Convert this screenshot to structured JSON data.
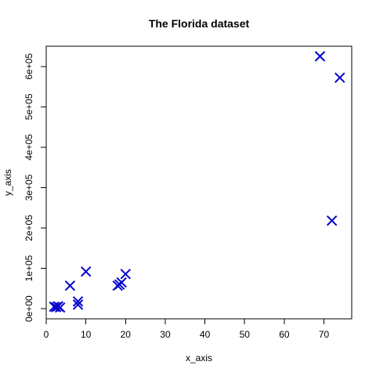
{
  "chart_data": {
    "type": "scatter",
    "title": "The Florida dataset",
    "xlabel": "x_axis",
    "ylabel": "y_axis",
    "xlim": [
      0,
      77
    ],
    "ylim": [
      -25000,
      650000
    ],
    "x_ticks": [
      0,
      10,
      20,
      30,
      40,
      50,
      60,
      70
    ],
    "x_tick_labels": [
      "0",
      "10",
      "20",
      "30",
      "40",
      "50",
      "60",
      "70"
    ],
    "y_ticks": [
      0,
      100000,
      200000,
      300000,
      400000,
      500000,
      600000
    ],
    "y_tick_labels": [
      "0e+00",
      "1e+05",
      "2e+05",
      "3e+05",
      "4e+05",
      "5e+05",
      "6e+05"
    ],
    "grid": false,
    "marker": "x",
    "marker_color": "#0000CD",
    "series": [
      {
        "name": "",
        "x": [
          2,
          3,
          2.5,
          3.5,
          6,
          8,
          8,
          10,
          18,
          18.5,
          19,
          20,
          69,
          72,
          74
        ],
        "y": [
          5000,
          6000,
          4000,
          3000,
          57000,
          18000,
          10000,
          92000,
          57000,
          60000,
          65000,
          86000,
          625000,
          218000,
          572000
        ]
      }
    ]
  }
}
